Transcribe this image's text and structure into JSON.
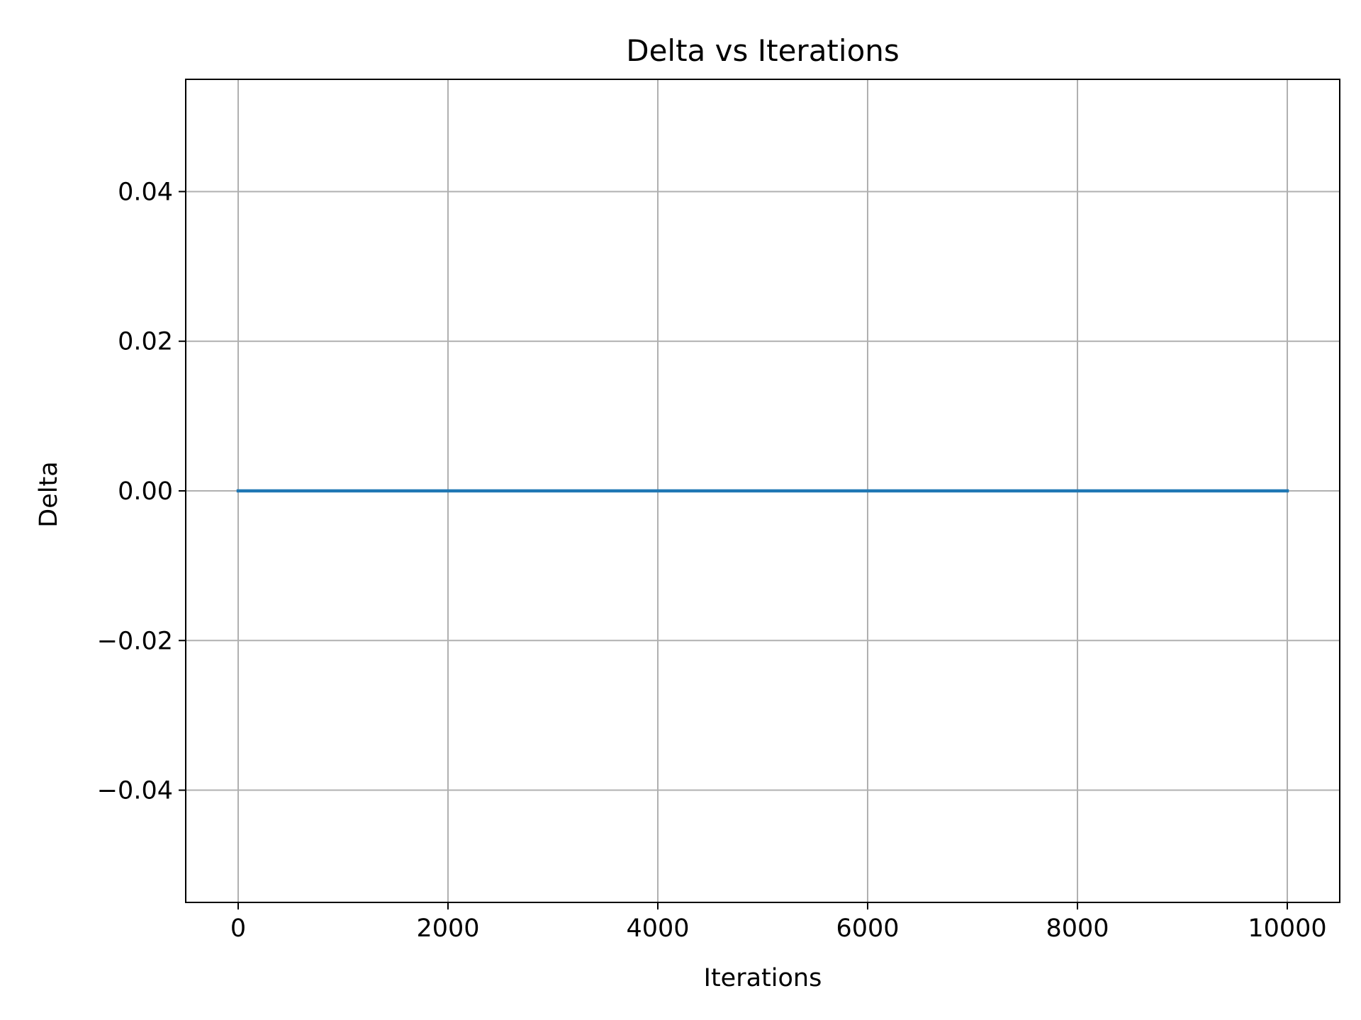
{
  "chart_data": {
    "type": "line",
    "title": "Delta vs Iterations",
    "xlabel": "Iterations",
    "ylabel": "Delta",
    "xlim": [
      -500,
      10500
    ],
    "ylim": [
      -0.055,
      0.055
    ],
    "xticks": [
      0,
      2000,
      4000,
      6000,
      8000,
      10000
    ],
    "xtick_labels": [
      "0",
      "2000",
      "4000",
      "6000",
      "8000",
      "10000"
    ],
    "yticks": [
      -0.04,
      -0.02,
      0.0,
      0.02,
      0.04
    ],
    "ytick_labels": [
      "−0.04",
      "−0.02",
      "0.00",
      "0.02",
      "0.04"
    ],
    "grid": true,
    "series": [
      {
        "color": "#1f77b4",
        "x": [
          0,
          10000
        ],
        "y": [
          0,
          0
        ]
      }
    ]
  }
}
